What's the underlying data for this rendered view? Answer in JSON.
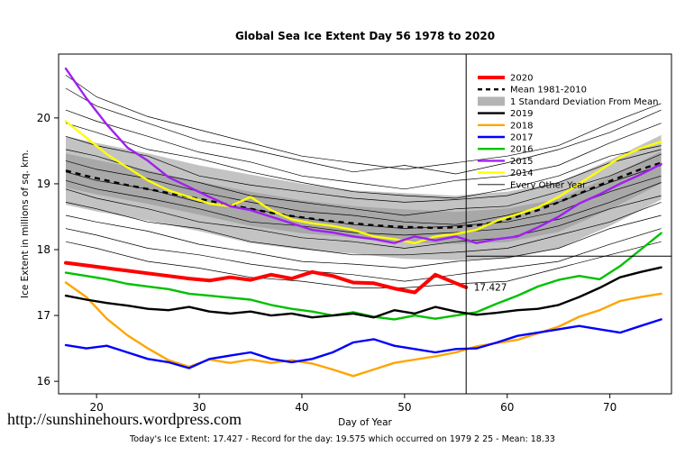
{
  "page": {
    "footer_url": "http://sunshinehours.wordpress.com",
    "footer_caption": "Today's Ice Extent: 17.427  - Record for the day: 19.575 which occurred on 1979 2 25  - Mean: 18.33"
  },
  "chart_data": {
    "type": "line",
    "title": "Global Sea Ice Extent Day 56 1978 to 2020",
    "xlabel": "Day of Year",
    "ylabel": "Ice Extent in millions of sq. km.",
    "xlim": [
      16.3,
      76
    ],
    "ylim": [
      15.81,
      20.97
    ],
    "xticks": [
      20,
      30,
      40,
      50,
      60,
      70
    ],
    "yticks": [
      16,
      17,
      18,
      19,
      20
    ],
    "grid": false,
    "legend_position": "top-right-inside",
    "crosshair": {
      "vline_day": 56,
      "hline_value": 17.9
    },
    "annotation": {
      "text": "17.427",
      "day": 56.4,
      "value": 17.42,
      "color": "#ff0000"
    },
    "x_days": [
      17,
      19,
      21,
      23,
      25,
      27,
      29,
      31,
      33,
      35,
      37,
      39,
      41,
      43,
      45,
      47,
      49,
      51,
      53,
      55,
      57,
      59,
      61,
      63,
      65,
      67,
      69,
      71,
      73,
      75
    ],
    "mean": {
      "name": "Mean 1981-2010",
      "color": "#000000",
      "width": 2.4,
      "dash": "6,5",
      "values": [
        19.2,
        19.12,
        19.05,
        18.98,
        18.92,
        18.86,
        18.8,
        18.74,
        18.68,
        18.62,
        18.56,
        18.51,
        18.47,
        18.43,
        18.4,
        18.37,
        18.35,
        18.34,
        18.33,
        18.34,
        18.37,
        18.42,
        18.5,
        18.6,
        18.72,
        18.85,
        18.98,
        19.1,
        19.22,
        19.32
      ]
    },
    "band": {
      "name": "1 Standard Deviation From Mean",
      "color": "#c3c3c3",
      "inner_color": "#a8a8a8",
      "x": [
        17,
        20,
        25,
        30,
        35,
        40,
        45,
        50,
        55,
        60,
        65,
        70,
        75
      ],
      "upper": [
        19.72,
        19.62,
        19.46,
        19.28,
        19.14,
        19.0,
        18.9,
        18.86,
        18.82,
        18.88,
        19.02,
        19.36,
        19.74
      ],
      "lower": [
        18.68,
        18.58,
        18.44,
        18.28,
        18.1,
        18.0,
        17.94,
        17.86,
        17.84,
        17.86,
        18.02,
        18.36,
        18.76
      ]
    },
    "series": [
      {
        "name": "2014",
        "color": "#ffff00",
        "width": 2.4,
        "values": [
          19.95,
          19.7,
          19.45,
          19.25,
          19.05,
          18.9,
          18.8,
          18.7,
          18.66,
          18.8,
          18.6,
          18.46,
          18.4,
          18.36,
          18.3,
          18.2,
          18.16,
          18.1,
          18.2,
          18.24,
          18.3,
          18.44,
          18.54,
          18.64,
          18.8,
          19.0,
          19.2,
          19.4,
          19.54,
          19.64
        ]
      },
      {
        "name": "2015",
        "color": "#a020f0",
        "width": 2.4,
        "values": [
          20.75,
          20.3,
          19.9,
          19.55,
          19.35,
          19.1,
          18.95,
          18.8,
          18.66,
          18.6,
          18.5,
          18.4,
          18.3,
          18.26,
          18.2,
          18.16,
          18.1,
          18.2,
          18.14,
          18.2,
          18.1,
          18.16,
          18.2,
          18.34,
          18.5,
          18.7,
          18.84,
          19.0,
          19.14,
          19.3
        ]
      },
      {
        "name": "2018",
        "color": "#ffa500",
        "width": 2.4,
        "values": [
          17.5,
          17.28,
          16.95,
          16.7,
          16.5,
          16.32,
          16.22,
          16.33,
          16.28,
          16.33,
          16.28,
          16.32,
          16.27,
          16.18,
          16.08,
          16.18,
          16.28,
          16.33,
          16.38,
          16.44,
          16.53,
          16.58,
          16.63,
          16.73,
          16.83,
          16.98,
          17.08,
          17.22,
          17.28,
          17.33
        ]
      },
      {
        "name": "2017",
        "color": "#0000ff",
        "width": 2.4,
        "values": [
          16.55,
          16.5,
          16.54,
          16.44,
          16.34,
          16.29,
          16.2,
          16.34,
          16.39,
          16.44,
          16.34,
          16.29,
          16.34,
          16.44,
          16.59,
          16.64,
          16.54,
          16.49,
          16.44,
          16.49,
          16.5,
          16.59,
          16.69,
          16.74,
          16.79,
          16.84,
          16.79,
          16.74,
          16.84,
          16.94
        ]
      },
      {
        "name": "2016",
        "color": "#00c000",
        "width": 2.4,
        "values": [
          17.65,
          17.6,
          17.55,
          17.48,
          17.44,
          17.4,
          17.33,
          17.3,
          17.27,
          17.24,
          17.16,
          17.1,
          17.06,
          17.0,
          17.05,
          16.98,
          16.94,
          17.0,
          16.95,
          17.0,
          17.05,
          17.18,
          17.3,
          17.44,
          17.54,
          17.6,
          17.55,
          17.75,
          18.0,
          18.25
        ]
      },
      {
        "name": "2019",
        "color": "#000000",
        "width": 2.4,
        "values": [
          17.3,
          17.24,
          17.19,
          17.15,
          17.1,
          17.08,
          17.13,
          17.06,
          17.03,
          17.06,
          17.0,
          17.03,
          16.97,
          17.0,
          17.03,
          16.97,
          17.08,
          17.03,
          17.13,
          17.06,
          17.01,
          17.04,
          17.08,
          17.1,
          17.16,
          17.28,
          17.42,
          17.58,
          17.66,
          17.73
        ]
      },
      {
        "name": "2020",
        "color": "#ff0000",
        "width": 4,
        "x": [
          17,
          19,
          21,
          23,
          25,
          27,
          29,
          31,
          33,
          35,
          37,
          39,
          41,
          43,
          45,
          47,
          49,
          51,
          53,
          55,
          56
        ],
        "values": [
          17.8,
          17.76,
          17.72,
          17.68,
          17.64,
          17.6,
          17.56,
          17.53,
          17.58,
          17.54,
          17.62,
          17.56,
          17.66,
          17.6,
          17.5,
          17.49,
          17.41,
          17.35,
          17.62,
          17.49,
          17.427
        ]
      }
    ],
    "other_years": {
      "name": "Every Other Year",
      "color": "#000000",
      "width": 0.7,
      "x": [
        17,
        20,
        25,
        30,
        35,
        40,
        45,
        50,
        55,
        60,
        65,
        70,
        75
      ],
      "lines": [
        [
          20.45,
          20.18,
          19.92,
          19.66,
          19.52,
          19.35,
          19.18,
          19.28,
          19.15,
          19.32,
          19.52,
          19.78,
          20.12
        ],
        [
          20.12,
          19.95,
          19.72,
          19.48,
          19.33,
          19.12,
          19.02,
          18.92,
          19.05,
          19.12,
          19.28,
          19.62,
          19.92
        ],
        [
          19.92,
          19.78,
          19.52,
          19.38,
          19.18,
          19.02,
          18.88,
          18.82,
          18.78,
          18.92,
          19.12,
          19.42,
          19.58
        ],
        [
          19.72,
          19.58,
          19.42,
          19.12,
          18.98,
          18.88,
          18.78,
          18.72,
          18.76,
          18.82,
          19.02,
          19.32,
          19.52
        ],
        [
          19.52,
          19.42,
          19.18,
          19.02,
          18.82,
          18.72,
          18.62,
          18.52,
          18.62,
          18.66,
          18.88,
          19.12,
          19.45
        ],
        [
          19.35,
          19.22,
          19.08,
          18.88,
          18.72,
          18.58,
          18.52,
          18.42,
          18.38,
          18.52,
          18.72,
          19.02,
          19.28
        ],
        [
          19.18,
          19.05,
          18.92,
          18.72,
          18.62,
          18.48,
          18.38,
          18.32,
          18.36,
          18.42,
          18.58,
          18.88,
          19.12
        ],
        [
          19.05,
          18.92,
          18.78,
          18.62,
          18.42,
          18.36,
          18.26,
          18.22,
          18.26,
          18.32,
          18.46,
          18.72,
          19.02
        ],
        [
          18.92,
          18.78,
          18.62,
          18.42,
          18.32,
          18.18,
          18.12,
          18.02,
          18.12,
          18.18,
          18.36,
          18.62,
          18.82
        ],
        [
          18.72,
          18.62,
          18.42,
          18.32,
          18.12,
          18.02,
          17.92,
          17.92,
          17.96,
          18.02,
          18.22,
          18.42,
          18.72
        ],
        [
          18.52,
          18.42,
          18.28,
          18.08,
          17.96,
          17.82,
          17.78,
          17.72,
          17.82,
          17.88,
          18.02,
          18.32,
          18.52
        ],
        [
          18.32,
          18.22,
          18.02,
          17.92,
          17.78,
          17.68,
          17.62,
          17.52,
          17.62,
          17.72,
          17.82,
          18.08,
          18.32
        ],
        [
          18.12,
          18.02,
          17.82,
          17.72,
          17.58,
          17.52,
          17.42,
          17.42,
          17.48,
          17.52,
          17.72,
          17.92,
          18.12
        ],
        [
          20.65,
          20.32,
          20.02,
          19.82,
          19.62,
          19.42,
          19.32,
          19.22,
          19.32,
          19.42,
          19.58,
          19.92,
          20.22
        ]
      ]
    },
    "legend": [
      {
        "label": "2020",
        "swatch": "line",
        "color": "#ff0000",
        "width": 4
      },
      {
        "label": "Mean 1981-2010",
        "swatch": "dashed",
        "color": "#000000",
        "width": 2.4
      },
      {
        "label": "1 Standard Deviation From Mean",
        "swatch": "band",
        "color": "#b4b4b4"
      },
      {
        "label": "2019",
        "swatch": "line",
        "color": "#000000",
        "width": 2.4
      },
      {
        "label": "2018",
        "swatch": "line",
        "color": "#ffa500",
        "width": 2.4
      },
      {
        "label": "2017",
        "swatch": "line",
        "color": "#0000ff",
        "width": 2.4
      },
      {
        "label": "2016",
        "swatch": "line",
        "color": "#00c000",
        "width": 2.4
      },
      {
        "label": "2015",
        "swatch": "line",
        "color": "#a020f0",
        "width": 2.4
      },
      {
        "label": "2014",
        "swatch": "line",
        "color": "#ffff00",
        "width": 2.4
      },
      {
        "label": "Every Other Year",
        "swatch": "line",
        "color": "#000000",
        "width": 0.8
      }
    ]
  }
}
